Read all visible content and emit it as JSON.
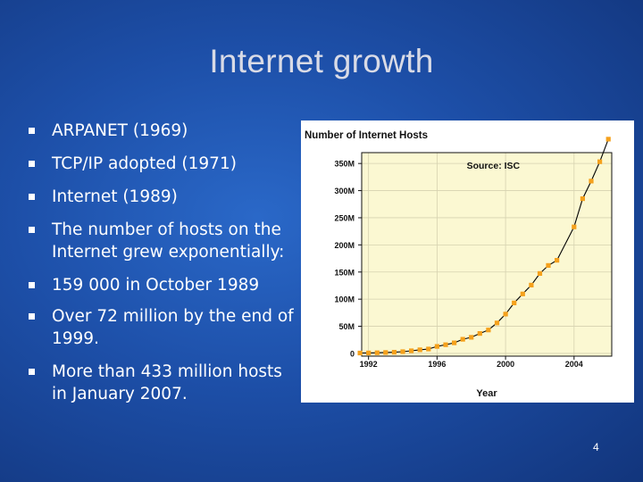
{
  "slide": {
    "title": "Internet growth",
    "page_number": "4"
  },
  "bullets": [
    "ARPANET (1969)",
    "TCP/IP adopted (1971)",
    "Internet  (1989)",
    "The number of hosts on the Internet grew exponentially:",
    "159 000 in October 1989",
    "Over 72 million by the end of 1999.",
    "More than 433 million hosts in January 2007."
  ],
  "chart_data": {
    "type": "line",
    "title": "Number of Internet Hosts",
    "annotation": "Source: ISC",
    "xlabel": "Year",
    "ylabel": "",
    "x_ticks": [
      1992,
      1996,
      2000,
      2004
    ],
    "x_tick_labels": [
      "1992",
      "1996",
      "2000",
      "2004"
    ],
    "y_ticks": [
      0,
      50,
      100,
      150,
      200,
      250,
      300,
      350
    ],
    "y_tick_labels": [
      "0",
      "50M",
      "100M",
      "150M",
      "200M",
      "250M",
      "300M",
      "350M"
    ],
    "xlim": [
      1991.6,
      2006.2
    ],
    "ylim": [
      -5,
      370
    ],
    "grid": true,
    "colors": {
      "plot_background": "#fbf8d2",
      "line": "#000000",
      "marker": "#f5a11c",
      "grid": "#d6d2b0"
    },
    "series": [
      {
        "x": [
          1991.5,
          1992.0,
          1992.5,
          1993.0,
          1993.5,
          1994.0,
          1994.5,
          1995.0,
          1995.5,
          1996.0,
          1996.5,
          1997.0,
          1997.5,
          1998.0,
          1998.5,
          1999.0,
          1999.5,
          2000.0,
          2000.5,
          2001.0,
          2001.5,
          2002.0,
          2002.5,
          2003.0,
          2004.0,
          2004.5,
          2005.0,
          2005.5,
          2006.0
        ],
        "values": [
          0.7,
          1.0,
          1.3,
          1.8,
          2.2,
          3.2,
          4.9,
          6.6,
          8.2,
          12.9,
          16.1,
          19.5,
          26.1,
          29.7,
          36.7,
          43.2,
          56.2,
          72.4,
          93.0,
          109.6,
          125.9,
          147.3,
          162.1,
          171.6,
          233.1,
          285.1,
          317.6,
          353.3,
          394.9
        ]
      }
    ]
  }
}
